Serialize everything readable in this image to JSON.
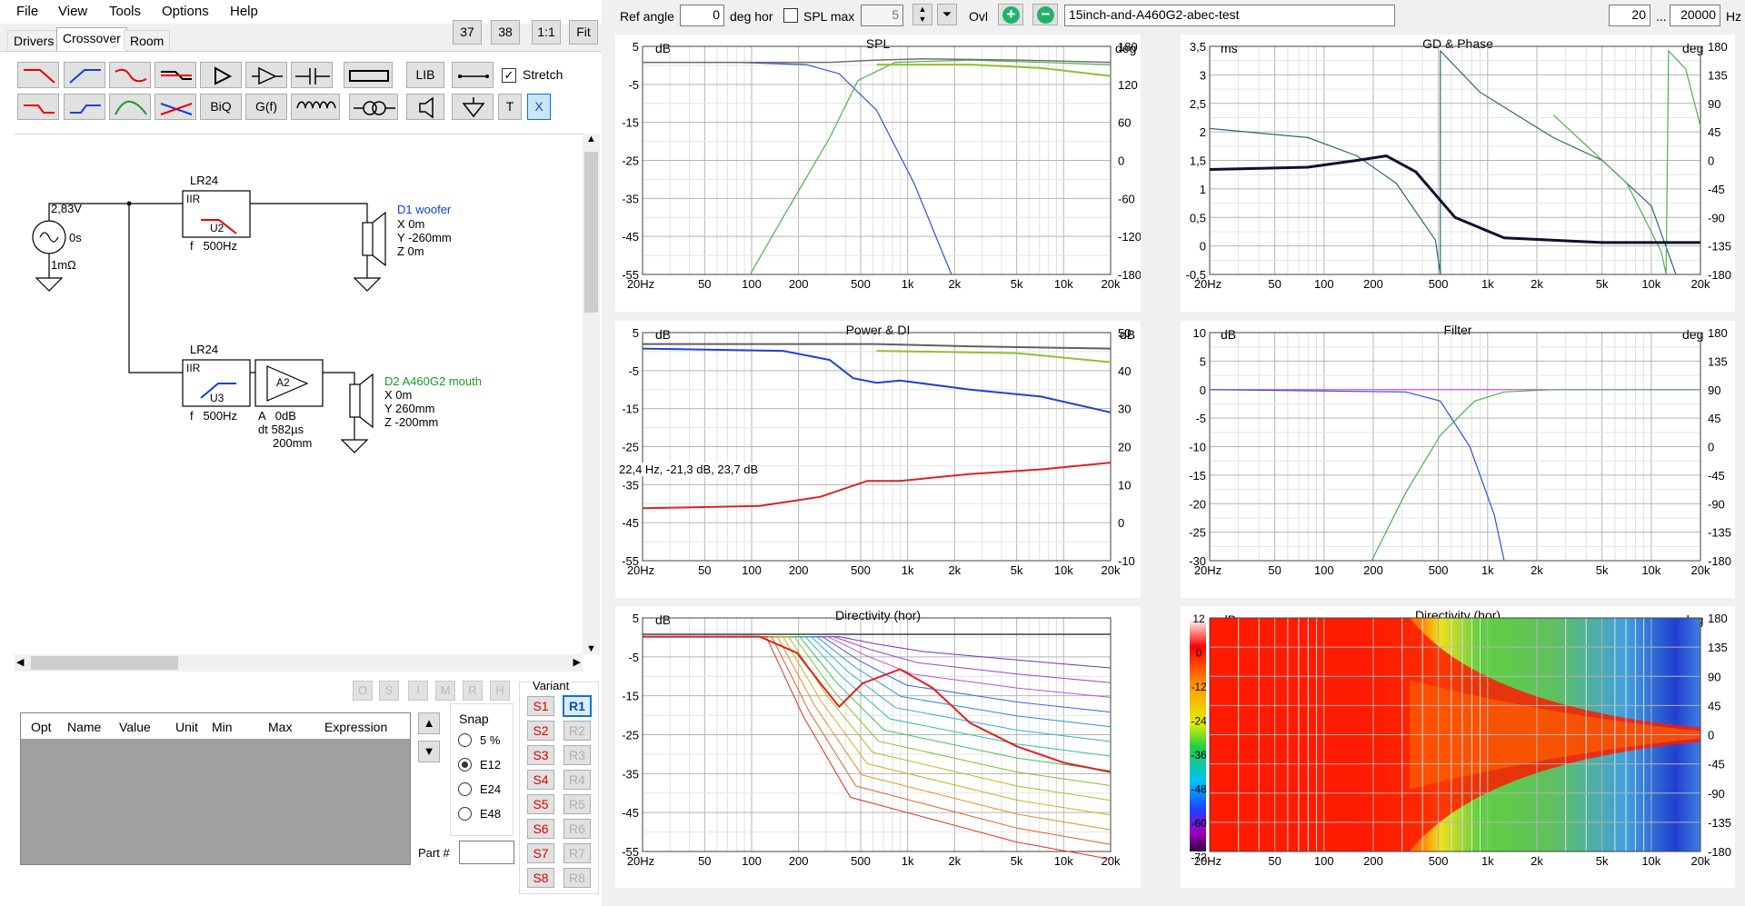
{
  "menu": [
    "File",
    "View",
    "Tools",
    "Options",
    "Help"
  ],
  "tabs": [
    "Drivers",
    "Crossover",
    "Room"
  ],
  "zoom_buttons": [
    "37",
    "38",
    "1:1",
    "Fit"
  ],
  "toolbar": {
    "lib": "LIB",
    "stretch": "Stretch",
    "biq": "BiQ",
    "gf": "G(f)",
    "t": "T",
    "x": "X"
  },
  "schematic": {
    "source": {
      "voltage": "2,83V",
      "delay": "0s",
      "resistance": "1mΩ"
    },
    "filter1": {
      "type": "LR24",
      "mode": "IIR",
      "id": "U2",
      "freq": "f   500Hz"
    },
    "filter2": {
      "type": "LR24",
      "mode": "IIR",
      "id": "U3",
      "freq": "f   500Hz"
    },
    "amp": {
      "id": "A2",
      "gain": "A   0dB",
      "delay": "dt 582µs",
      "dist": "200mm"
    },
    "d1": {
      "name": "D1 woofer",
      "x": "X 0m",
      "y": "Y -260mm",
      "z": "Z 0m"
    },
    "d2": {
      "name": "D2 A460G2 mouth",
      "x": "X 0m",
      "y": "Y 260mm",
      "z": "Z -200mm"
    }
  },
  "opt_buttons": [
    "O",
    "S",
    "I",
    "M",
    "R",
    "H"
  ],
  "table_headers": [
    "Opt",
    "Name",
    "Value",
    "Unit",
    "Min",
    "Max",
    "Expression"
  ],
  "snap": {
    "label": "Snap",
    "options": [
      "5 %",
      "E12",
      "E24",
      "E48"
    ],
    "selected": "E12"
  },
  "part_label": "Part #",
  "variant": {
    "label": "Variant",
    "s": [
      "S1",
      "S2",
      "S3",
      "S4",
      "S5",
      "S6",
      "S7",
      "S8"
    ],
    "r": [
      "R1",
      "R2",
      "R3",
      "R4",
      "R5",
      "R6",
      "R7",
      "R8"
    ],
    "selected": "R1"
  },
  "topbar": {
    "ref_angle_label": "Ref angle",
    "ref_angle": "0",
    "deg_hor": "deg hor",
    "spl_max": "SPL max",
    "spl_max_value": "5",
    "ovl": "Ovl",
    "project": "15inch-and-A460G2-abec-test",
    "f_min": "20",
    "ellipsis": "...",
    "f_max": "20000",
    "hz": "Hz"
  },
  "x_ticks": [
    "20Hz",
    "50",
    "100",
    "200",
    "500",
    "1k",
    "2k",
    "5k",
    "10k",
    "20k"
  ],
  "plots": {
    "spl": {
      "title": "SPL",
      "left_unit": "dB",
      "right_unit": "deg",
      "left_ticks": [
        "5",
        "-5",
        "-15",
        "-25",
        "-35",
        "-45",
        "-55"
      ],
      "right_ticks": [
        "180",
        "120",
        "60",
        "0",
        "-60",
        "-120",
        "-180"
      ]
    },
    "gd": {
      "title": "GD & Phase",
      "left_unit": "ms",
      "right_unit": "deg",
      "left_ticks": [
        "3,5",
        "3",
        "2,5",
        "2",
        "1,5",
        "1",
        "0,5",
        "0",
        "-0,5"
      ],
      "right_ticks": [
        "180",
        "135",
        "90",
        "45",
        "0",
        "-45",
        "-90",
        "-135",
        "-180"
      ]
    },
    "power": {
      "title": "Power & DI",
      "left_unit": "dB",
      "right_unit": "dB",
      "left_ticks": [
        "5",
        "-5",
        "-15",
        "-25",
        "-35",
        "-45",
        "-55"
      ],
      "right_ticks": [
        "50",
        "40",
        "30",
        "20",
        "10",
        "0",
        "-10"
      ],
      "cursor": "22,4 Hz, -21,3 dB, 23,7 dB"
    },
    "filter": {
      "title": "Filter",
      "left_unit": "dB",
      "right_unit": "deg",
      "left_ticks": [
        "10",
        "5",
        "0",
        "-5",
        "-10",
        "-15",
        "-20",
        "-25",
        "-30"
      ],
      "right_ticks": [
        "180",
        "135",
        "90",
        "45",
        "0",
        "-45",
        "-90",
        "-135",
        "-180"
      ]
    },
    "dir": {
      "title": "Directivity (hor)",
      "left_unit": "dB",
      "left_ticks": [
        "5",
        "-5",
        "-15",
        "-25",
        "-35",
        "-45",
        "-55"
      ]
    },
    "map": {
      "title": "Directivity (hor)",
      "left_unit": "dB",
      "right_unit": "deg",
      "scale_ticks": [
        "12",
        "0",
        "-12",
        "-24",
        "-36",
        "-48",
        "-60",
        "-72"
      ],
      "right_ticks": [
        "180",
        "135",
        "90",
        "45",
        "0",
        "-45",
        "-90",
        "-135",
        "-180"
      ]
    }
  }
}
